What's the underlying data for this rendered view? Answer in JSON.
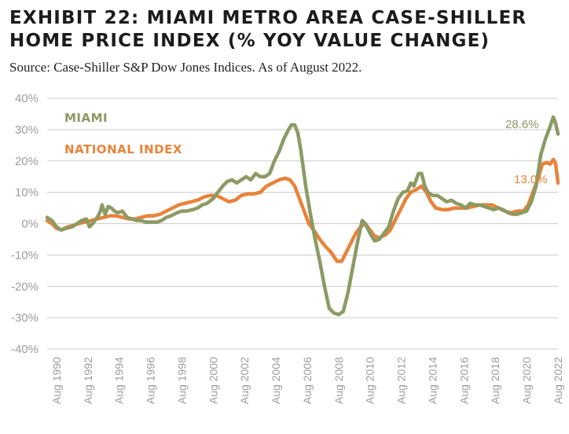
{
  "header": {
    "title": "EXHIBIT 22: MIAMI METRO AREA CASE-SHILLER HOME PRICE INDEX (% YOY VALUE CHANGE)",
    "source": "Source: Case-Shiller S&P Dow Jones Indices. As of August 2022."
  },
  "chart_data": {
    "type": "line",
    "title": "EXHIBIT 22: MIAMI METRO AREA CASE-SHILLER HOME PRICE INDEX (% YOY VALUE CHANGE)",
    "xlabel": "",
    "ylabel": "",
    "ylim": [
      -40,
      40
    ],
    "xlim": [
      1990.0,
      2022.6
    ],
    "grid": "horizontal",
    "legend": "inline-labels",
    "colors": {
      "grid": "#cccccc",
      "tick_text": "#9c9c9c"
    },
    "yticks": [
      {
        "value": 40,
        "label": "40%"
      },
      {
        "value": 30,
        "label": "30%"
      },
      {
        "value": 20,
        "label": "20%"
      },
      {
        "value": 10,
        "label": "10%"
      },
      {
        "value": 0,
        "label": "0%"
      },
      {
        "value": -10,
        "label": "-10%"
      },
      {
        "value": -20,
        "label": "-20%"
      },
      {
        "value": -30,
        "label": "-30%"
      },
      {
        "value": -40,
        "label": "-40%"
      }
    ],
    "xticks": [
      {
        "value": 1990.6,
        "label": "Aug 1990"
      },
      {
        "value": 1992.6,
        "label": "Aug 1992"
      },
      {
        "value": 1994.6,
        "label": "Aug 1994"
      },
      {
        "value": 1996.6,
        "label": "Aug 1996"
      },
      {
        "value": 1998.6,
        "label": "Aug 1998"
      },
      {
        "value": 2000.6,
        "label": "Aug 2000"
      },
      {
        "value": 2002.6,
        "label": "Aug 2002"
      },
      {
        "value": 2004.6,
        "label": "Aug 2004"
      },
      {
        "value": 2006.6,
        "label": "Aug 2006"
      },
      {
        "value": 2008.6,
        "label": "Aug 2008"
      },
      {
        "value": 2010.6,
        "label": "Aug 2010"
      },
      {
        "value": 2012.6,
        "label": "Aug 2012"
      },
      {
        "value": 2014.6,
        "label": "Aug 2014"
      },
      {
        "value": 2016.6,
        "label": "Aug 2016"
      },
      {
        "value": 2018.6,
        "label": "Aug 2018"
      },
      {
        "value": 2020.6,
        "label": "Aug 2020"
      },
      {
        "value": 2022.6,
        "label": "Aug 2022"
      }
    ],
    "series": [
      {
        "name": "MIAMI",
        "color": "#8c9a64",
        "end_label": "28.6%",
        "points": [
          [
            1990.0,
            2
          ],
          [
            1990.3,
            1
          ],
          [
            1990.6,
            -1
          ],
          [
            1990.9,
            -2
          ],
          [
            1991.2,
            -1.5
          ],
          [
            1991.6,
            -1
          ],
          [
            1991.9,
            0
          ],
          [
            1992.2,
            1
          ],
          [
            1992.5,
            1.5
          ],
          [
            1992.7,
            -1
          ],
          [
            1992.9,
            0
          ],
          [
            1993.2,
            2
          ],
          [
            1993.4,
            4
          ],
          [
            1993.5,
            6
          ],
          [
            1993.7,
            3
          ],
          [
            1993.9,
            5.5
          ],
          [
            1994.1,
            5
          ],
          [
            1994.3,
            4
          ],
          [
            1994.5,
            3.5
          ],
          [
            1994.8,
            4
          ],
          [
            1995.1,
            2
          ],
          [
            1995.4,
            1.5
          ],
          [
            1995.7,
            1
          ],
          [
            1996.0,
            1
          ],
          [
            1996.3,
            0.5
          ],
          [
            1996.6,
            0.5
          ],
          [
            1997.0,
            0.5
          ],
          [
            1997.3,
            1
          ],
          [
            1997.6,
            2
          ],
          [
            1997.9,
            2.5
          ],
          [
            1998.3,
            3.5
          ],
          [
            1998.6,
            4
          ],
          [
            1998.9,
            4
          ],
          [
            1999.3,
            4.5
          ],
          [
            1999.6,
            5
          ],
          [
            1999.9,
            6
          ],
          [
            2000.2,
            6.5
          ],
          [
            2000.6,
            8
          ],
          [
            2000.9,
            10
          ],
          [
            2001.2,
            12
          ],
          [
            2001.5,
            13.5
          ],
          [
            2001.8,
            14
          ],
          [
            2002.1,
            13
          ],
          [
            2002.4,
            14
          ],
          [
            2002.7,
            15
          ],
          [
            2003.0,
            14
          ],
          [
            2003.3,
            16
          ],
          [
            2003.6,
            15
          ],
          [
            2003.9,
            15
          ],
          [
            2004.2,
            16
          ],
          [
            2004.5,
            20
          ],
          [
            2004.8,
            23
          ],
          [
            2005.1,
            27
          ],
          [
            2005.4,
            30
          ],
          [
            2005.6,
            31.5
          ],
          [
            2005.8,
            31.5
          ],
          [
            2006.0,
            29
          ],
          [
            2006.2,
            23
          ],
          [
            2006.5,
            12
          ],
          [
            2006.8,
            3
          ],
          [
            2007.1,
            -5
          ],
          [
            2007.4,
            -12
          ],
          [
            2007.7,
            -20
          ],
          [
            2008.0,
            -27
          ],
          [
            2008.3,
            -28.5
          ],
          [
            2008.6,
            -29
          ],
          [
            2008.9,
            -28
          ],
          [
            2009.2,
            -22
          ],
          [
            2009.5,
            -14
          ],
          [
            2009.8,
            -6
          ],
          [
            2010.1,
            1
          ],
          [
            2010.3,
            0
          ],
          [
            2010.6,
            -3
          ],
          [
            2010.9,
            -5.5
          ],
          [
            2011.2,
            -5
          ],
          [
            2011.5,
            -3
          ],
          [
            2011.8,
            -1
          ],
          [
            2012.1,
            4
          ],
          [
            2012.4,
            8
          ],
          [
            2012.7,
            10
          ],
          [
            2013.0,
            10.5
          ],
          [
            2013.2,
            13
          ],
          [
            2013.4,
            12
          ],
          [
            2013.7,
            16
          ],
          [
            2013.9,
            16
          ],
          [
            2014.1,
            12
          ],
          [
            2014.3,
            10
          ],
          [
            2014.6,
            9
          ],
          [
            2014.9,
            9
          ],
          [
            2015.2,
            8
          ],
          [
            2015.5,
            7
          ],
          [
            2015.8,
            7.5
          ],
          [
            2016.1,
            6.5
          ],
          [
            2016.4,
            6
          ],
          [
            2016.7,
            5
          ],
          [
            2017.0,
            6.5
          ],
          [
            2017.3,
            6
          ],
          [
            2017.6,
            6
          ],
          [
            2017.9,
            5.5
          ],
          [
            2018.2,
            5
          ],
          [
            2018.5,
            4.5
          ],
          [
            2018.8,
            5
          ],
          [
            2019.1,
            4.5
          ],
          [
            2019.4,
            3.5
          ],
          [
            2019.7,
            3
          ],
          [
            2020.0,
            3
          ],
          [
            2020.3,
            3.5
          ],
          [
            2020.6,
            4
          ],
          [
            2020.9,
            7
          ],
          [
            2021.2,
            12
          ],
          [
            2021.5,
            22
          ],
          [
            2021.8,
            27
          ],
          [
            2022.1,
            31
          ],
          [
            2022.3,
            34
          ],
          [
            2022.45,
            32
          ],
          [
            2022.6,
            28.6
          ]
        ]
      },
      {
        "name": "NATIONAL INDEX",
        "color": "#e8833a",
        "end_label": "13.0%",
        "points": [
          [
            1990.0,
            1
          ],
          [
            1990.3,
            0
          ],
          [
            1990.6,
            -1.5
          ],
          [
            1990.9,
            -2
          ],
          [
            1991.3,
            -1
          ],
          [
            1991.7,
            -0.5
          ],
          [
            1992.0,
            0
          ],
          [
            1992.4,
            0.5
          ],
          [
            1992.8,
            1
          ],
          [
            1993.2,
            1.5
          ],
          [
            1993.6,
            2
          ],
          [
            1994.0,
            2.5
          ],
          [
            1994.4,
            2.5
          ],
          [
            1994.8,
            2
          ],
          [
            1995.2,
            1.5
          ],
          [
            1995.6,
            1.5
          ],
          [
            1996.0,
            2
          ],
          [
            1996.4,
            2.5
          ],
          [
            1996.8,
            2.5
          ],
          [
            1997.2,
            3
          ],
          [
            1997.6,
            4
          ],
          [
            1998.0,
            5
          ],
          [
            1998.4,
            6
          ],
          [
            1998.8,
            6.5
          ],
          [
            1999.2,
            7
          ],
          [
            1999.6,
            7.5
          ],
          [
            2000.0,
            8.5
          ],
          [
            2000.4,
            9
          ],
          [
            2000.8,
            9
          ],
          [
            2001.2,
            8
          ],
          [
            2001.6,
            7
          ],
          [
            2002.0,
            7.5
          ],
          [
            2002.4,
            9
          ],
          [
            2002.8,
            9.5
          ],
          [
            2003.2,
            9.5
          ],
          [
            2003.6,
            10
          ],
          [
            2004.0,
            12
          ],
          [
            2004.4,
            13
          ],
          [
            2004.8,
            14
          ],
          [
            2005.2,
            14.5
          ],
          [
            2005.5,
            14
          ],
          [
            2005.8,
            12
          ],
          [
            2006.1,
            8
          ],
          [
            2006.4,
            4
          ],
          [
            2006.7,
            0
          ],
          [
            2007.0,
            -2
          ],
          [
            2007.4,
            -5
          ],
          [
            2007.8,
            -7.5
          ],
          [
            2008.1,
            -9
          ],
          [
            2008.5,
            -12
          ],
          [
            2008.8,
            -12
          ],
          [
            2009.1,
            -9
          ],
          [
            2009.4,
            -6
          ],
          [
            2009.7,
            -3
          ],
          [
            2010.0,
            -1
          ],
          [
            2010.3,
            0
          ],
          [
            2010.6,
            -2
          ],
          [
            2010.9,
            -4
          ],
          [
            2011.2,
            -4.5
          ],
          [
            2011.6,
            -3.5
          ],
          [
            2011.9,
            -2
          ],
          [
            2012.2,
            1
          ],
          [
            2012.6,
            5
          ],
          [
            2012.9,
            8
          ],
          [
            2013.2,
            10
          ],
          [
            2013.6,
            11
          ],
          [
            2013.9,
            12
          ],
          [
            2014.2,
            10
          ],
          [
            2014.5,
            7
          ],
          [
            2014.8,
            5
          ],
          [
            2015.2,
            4.5
          ],
          [
            2015.6,
            4.5
          ],
          [
            2016.0,
            5
          ],
          [
            2016.4,
            5
          ],
          [
            2016.8,
            5
          ],
          [
            2017.2,
            5.5
          ],
          [
            2017.6,
            6
          ],
          [
            2018.0,
            6
          ],
          [
            2018.4,
            6
          ],
          [
            2018.8,
            5
          ],
          [
            2019.2,
            4
          ],
          [
            2019.6,
            3.5
          ],
          [
            2020.0,
            4
          ],
          [
            2020.4,
            4
          ],
          [
            2020.7,
            6
          ],
          [
            2021.0,
            10
          ],
          [
            2021.3,
            14
          ],
          [
            2021.6,
            19
          ],
          [
            2021.9,
            19.5
          ],
          [
            2022.1,
            19
          ],
          [
            2022.3,
            20.5
          ],
          [
            2022.45,
            19
          ],
          [
            2022.6,
            13
          ]
        ]
      }
    ]
  }
}
